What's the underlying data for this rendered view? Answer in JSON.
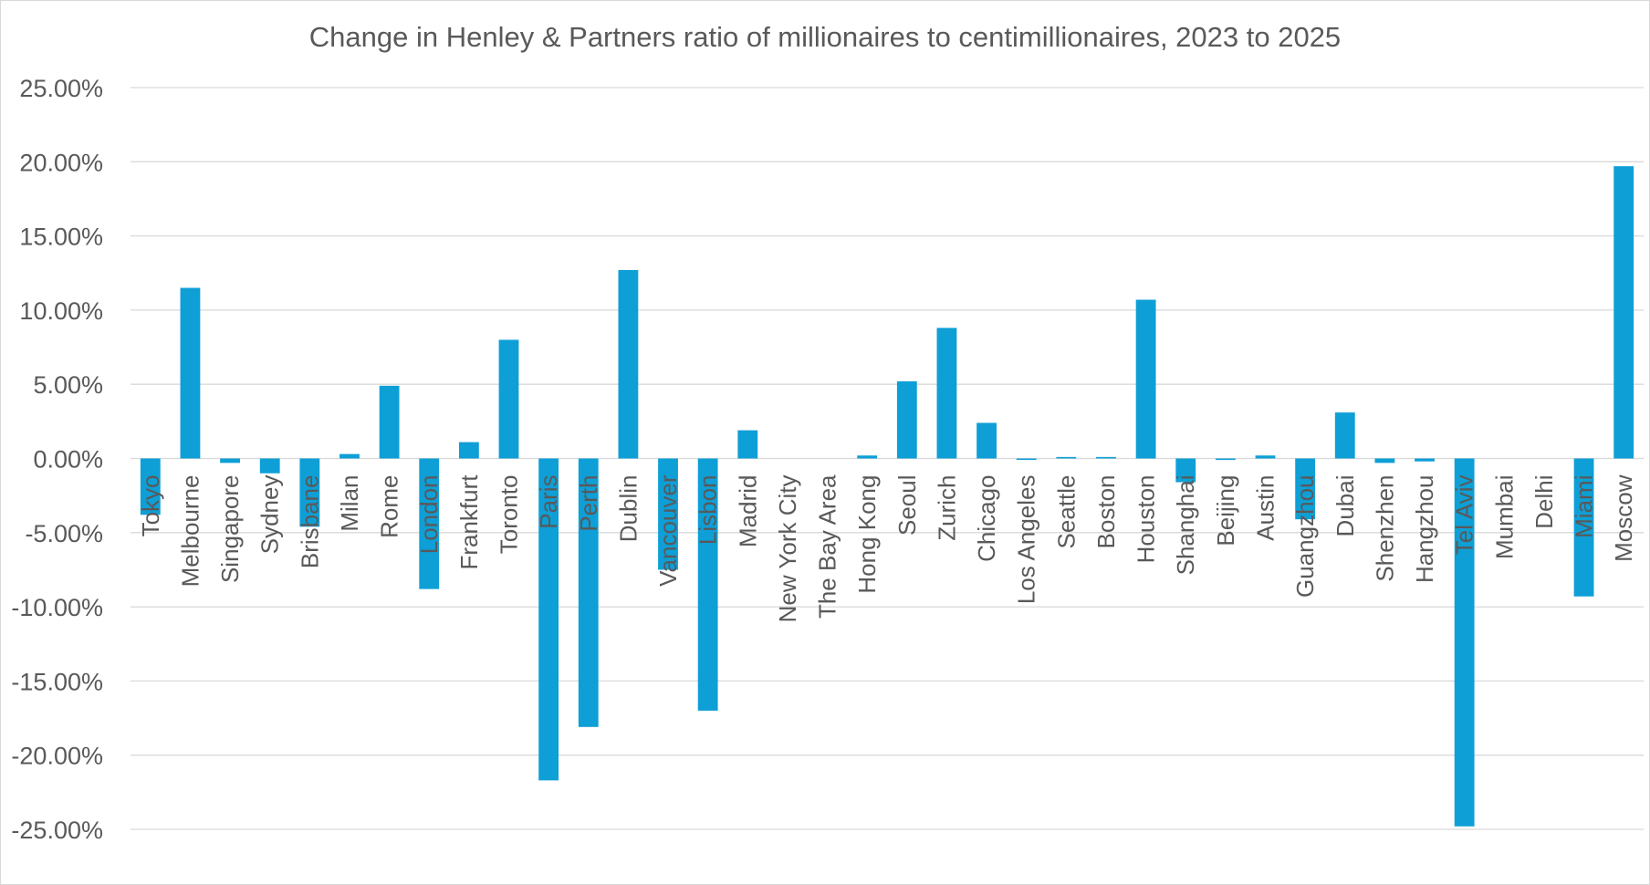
{
  "chart_data": {
    "type": "bar",
    "title": "Change in Henley & Partners ratio of millionaires to centimillionaires, 2023 to 2025",
    "xlabel": "",
    "ylabel": "",
    "ylim": [
      -25,
      25
    ],
    "ytick_values": [
      25,
      20,
      15,
      10,
      5,
      0,
      -5,
      -10,
      -15,
      -20,
      -25
    ],
    "ytick_labels": [
      "25.00%",
      "20.00%",
      "15.00%",
      "10.00%",
      "5.00%",
      "0.00%",
      "-5.00%",
      "-10.00%",
      "-15.00%",
      "-20.00%",
      "-25.00%"
    ],
    "grid": true,
    "legend": "none",
    "bar_color": "#0e9fd6",
    "categories": [
      "Tokyo",
      "Melbourne",
      "Singapore",
      "Sydney",
      "Brisbane",
      "Milan",
      "Rome",
      "London",
      "Frankfurt",
      "Toronto",
      "Paris",
      "Perth",
      "Dublin",
      "Vancouver",
      "Lisbon",
      "Madrid",
      "New York City",
      "The Bay Area",
      "Hong Kong",
      "Seoul",
      "Zurich",
      "Chicago",
      "Los Angeles",
      "Seattle",
      "Boston",
      "Houston",
      "Shanghai",
      "Beijing",
      "Austin",
      "Guangzhou",
      "Dubai",
      "Shenzhen",
      "Hangzhou",
      "Tel Aviv",
      "Mumbai",
      "Delhi",
      "Miami",
      "Moscow"
    ],
    "values": [
      -3.8,
      11.5,
      -0.3,
      -1.0,
      -4.6,
      0.3,
      4.9,
      -8.8,
      1.1,
      8.0,
      -21.7,
      -18.1,
      12.7,
      -7.5,
      -17.0,
      1.9,
      0.0,
      0.0,
      0.2,
      5.2,
      8.8,
      2.4,
      -0.1,
      0.1,
      0.1,
      10.7,
      -1.6,
      -0.1,
      0.2,
      -4.1,
      3.1,
      -0.3,
      -0.2,
      -24.8,
      0.0,
      0.0,
      -9.3,
      19.7
    ]
  }
}
